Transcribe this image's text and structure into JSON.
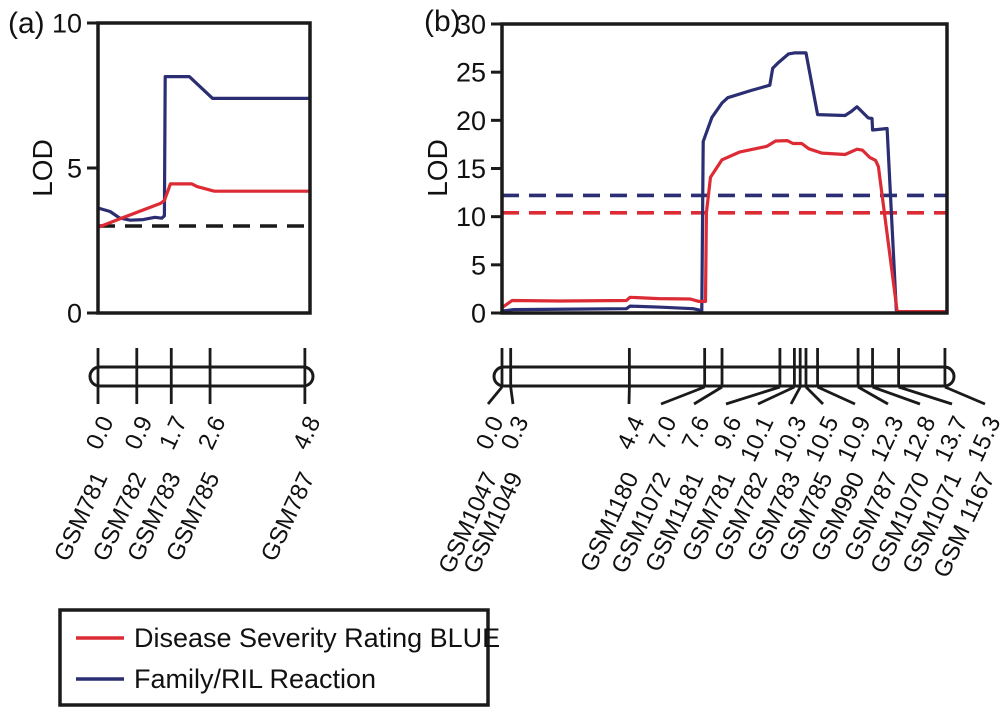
{
  "colors": {
    "red": "#dc2b35",
    "navy": "#2b2e72",
    "black": "#1a1a1a"
  },
  "chart_data": [
    {
      "type": "line",
      "panel_label": "(a)",
      "ylabel": "LOD",
      "ylim": [
        0,
        10
      ],
      "yticks": [
        0,
        5,
        10
      ],
      "xlim": [
        0,
        4.92
      ],
      "grid": false,
      "legend_position": "bottom-left-outside",
      "thresholds": [
        {
          "value": 3.0,
          "color": "#1a1a1a",
          "style": "dashed",
          "name": "significance-threshold"
        }
      ],
      "series": [
        {
          "name": "Family/RIL Reaction",
          "color": "#2b2e72",
          "points": [
            [
              0,
              3.62
            ],
            [
              0.28,
              3.5
            ],
            [
              0.5,
              3.28
            ],
            [
              0.75,
              3.2
            ],
            [
              1.05,
              3.22
            ],
            [
              1.32,
              3.3
            ],
            [
              1.48,
              3.27
            ],
            [
              1.54,
              3.35
            ],
            [
              1.56,
              8.15
            ],
            [
              2.12,
              8.15
            ],
            [
              2.66,
              7.4
            ],
            [
              4.92,
              7.4
            ]
          ]
        },
        {
          "name": "Disease Severity Rating BLUE",
          "color": "#dc2b35",
          "points": [
            [
              0,
              2.95
            ],
            [
              0.6,
              3.3
            ],
            [
              1.45,
              3.78
            ],
            [
              1.54,
              3.88
            ],
            [
              1.68,
              4.45
            ],
            [
              2.18,
              4.45
            ],
            [
              2.3,
              4.36
            ],
            [
              2.7,
              4.2
            ],
            [
              4.92,
              4.2
            ]
          ]
        }
      ],
      "map": {
        "units": "cM",
        "chromosome_length": 4.8,
        "positions": [
          0.0,
          0.9,
          1.7,
          2.6,
          4.8
        ],
        "position_labels": [
          "0.0",
          "0.9",
          "1.7",
          "2.6",
          "4.8"
        ],
        "markers": [
          "GSM781",
          "GSM782",
          "GSM783",
          "GSM785",
          "GSM787"
        ]
      }
    },
    {
      "type": "line",
      "panel_label": "(b)",
      "ylabel": "LOD",
      "ylim": [
        0,
        30
      ],
      "yticks": [
        0,
        5,
        10,
        15,
        20,
        25,
        30
      ],
      "xlim": [
        0,
        15.37
      ],
      "grid": false,
      "thresholds": [
        {
          "value": 12.2,
          "color": "#2b2e72",
          "style": "dashed",
          "name": "family-ril-threshold"
        },
        {
          "value": 10.4,
          "color": "#dc2b35",
          "style": "dashed",
          "name": "dsr-blue-threshold"
        }
      ],
      "series": [
        {
          "name": "Family/RIL Reaction",
          "color": "#2b2e72",
          "points": [
            [
              0,
              0.2
            ],
            [
              0.4,
              0.35
            ],
            [
              2.5,
              0.4
            ],
            [
              4.3,
              0.45
            ],
            [
              4.42,
              0.72
            ],
            [
              5.5,
              0.6
            ],
            [
              6.6,
              0.45
            ],
            [
              6.9,
              0.25
            ],
            [
              6.95,
              17.8
            ],
            [
              7.25,
              20.3
            ],
            [
              7.6,
              21.8
            ],
            [
              7.8,
              22.35
            ],
            [
              8.6,
              23.1
            ],
            [
              9.25,
              23.65
            ],
            [
              9.35,
              25.4
            ],
            [
              9.55,
              26.0
            ],
            [
              9.9,
              26.9
            ],
            [
              10.1,
              27.0
            ],
            [
              10.5,
              27.0
            ],
            [
              10.9,
              20.6
            ],
            [
              11.85,
              20.5
            ],
            [
              12.05,
              20.9
            ],
            [
              12.26,
              21.4
            ],
            [
              12.65,
              20.25
            ],
            [
              12.78,
              20.2
            ],
            [
              12.8,
              19.0
            ],
            [
              13.3,
              19.15
            ],
            [
              13.62,
              0.3
            ],
            [
              13.68,
              0.05
            ],
            [
              15.37,
              0.05
            ]
          ]
        },
        {
          "name": "Disease Severity Rating BLUE",
          "color": "#dc2b35",
          "points": [
            [
              0,
              0.55
            ],
            [
              0.35,
              1.3
            ],
            [
              2.0,
              1.25
            ],
            [
              4.3,
              1.3
            ],
            [
              4.42,
              1.63
            ],
            [
              5.4,
              1.5
            ],
            [
              6.5,
              1.45
            ],
            [
              6.8,
              1.2
            ],
            [
              7.03,
              1.2
            ],
            [
              7.06,
              10.4
            ],
            [
              7.2,
              14.1
            ],
            [
              7.6,
              15.9
            ],
            [
              8.2,
              16.7
            ],
            [
              9.15,
              17.3
            ],
            [
              9.45,
              17.85
            ],
            [
              9.85,
              17.9
            ],
            [
              10.05,
              17.6
            ],
            [
              10.35,
              17.6
            ],
            [
              10.6,
              17.05
            ],
            [
              11.05,
              16.6
            ],
            [
              11.85,
              16.45
            ],
            [
              12.26,
              17.0
            ],
            [
              12.45,
              16.9
            ],
            [
              12.7,
              16.15
            ],
            [
              12.9,
              15.85
            ],
            [
              13.0,
              15.2
            ],
            [
              13.65,
              0.15
            ],
            [
              15.37,
              0.15
            ]
          ]
        }
      ],
      "map": {
        "units": "cM",
        "chromosome_length": 15.3,
        "positions": [
          0.0,
          0.3,
          4.4,
          7.0,
          7.6,
          9.6,
          10.1,
          10.3,
          10.5,
          10.9,
          12.3,
          12.8,
          13.7,
          15.3
        ],
        "position_labels": [
          "0.0",
          "0.3",
          "4.4",
          "7.0",
          "7.6",
          "9.6",
          "10.1",
          "10.3",
          "10.5",
          "10.9",
          "12.3",
          "12.8",
          "13.7",
          "15.3"
        ],
        "markers": [
          "GSM1047",
          "GSM1049",
          "GSM1180",
          "GSM1072",
          "GSM1181",
          "GSM781",
          "GSM782",
          "GSM783",
          "GSM785",
          "GSM990",
          "GSM787",
          "GSM1070",
          "GSM1071",
          "GSM 1167"
        ]
      }
    }
  ],
  "figure_legend": {
    "items": [
      {
        "label": "Disease Severity Rating BLUE",
        "color": "#dc2b35"
      },
      {
        "label": "Family/RIL Reaction",
        "color": "#2b2e72"
      }
    ]
  }
}
